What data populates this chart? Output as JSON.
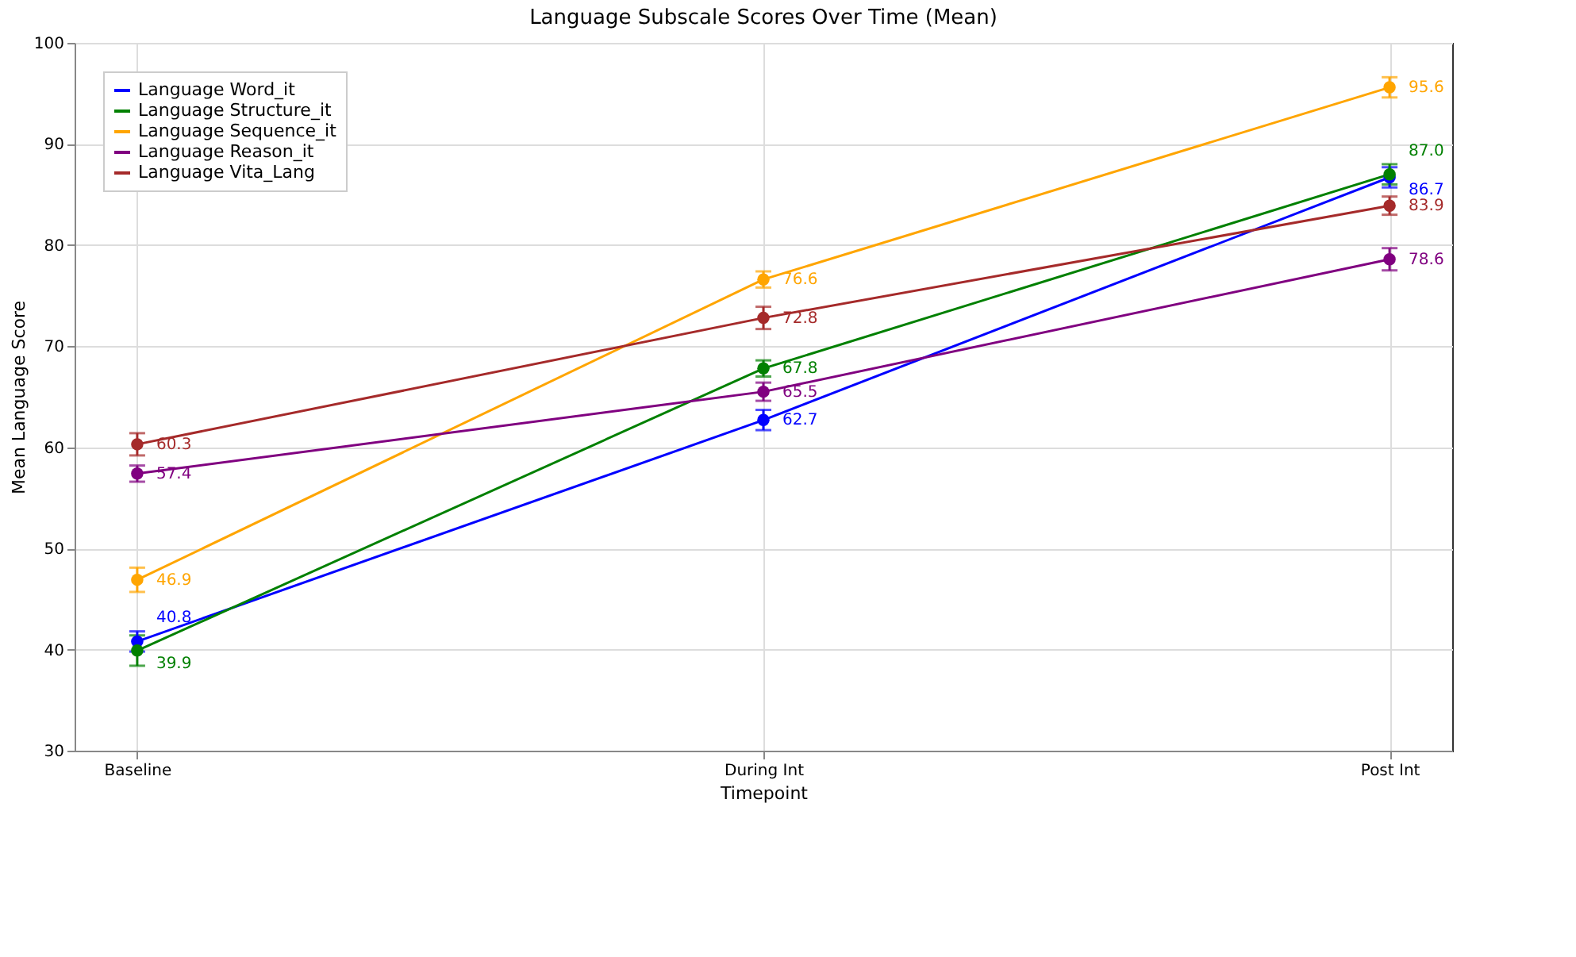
{
  "chart_data": {
    "type": "line",
    "title": "Language Subscale Scores Over Time (Mean)",
    "xlabel": "Timepoint",
    "ylabel": "Mean Language Score",
    "categories": [
      "Baseline",
      "During Int",
      "Post Int"
    ],
    "series": [
      {
        "name": "Language Word_it",
        "color": "#0000ff",
        "values": [
          40.8,
          62.7,
          86.7
        ],
        "errors": [
          1.0,
          1.0,
          1.0
        ],
        "value_labels": [
          "40.8",
          "62.7",
          "86.7"
        ]
      },
      {
        "name": "Language Structure_it",
        "color": "#008000",
        "values": [
          39.9,
          67.8,
          87.0
        ],
        "errors": [
          1.5,
          0.8,
          1.0
        ],
        "value_labels": [
          "39.9",
          "67.8",
          "87.0"
        ]
      },
      {
        "name": "Language Sequence_it",
        "color": "#ffa500",
        "values": [
          46.9,
          76.6,
          95.6
        ],
        "errors": [
          1.2,
          0.8,
          1.0
        ],
        "value_labels": [
          "46.9",
          "76.6",
          "95.6"
        ]
      },
      {
        "name": "Language Reason_it",
        "color": "#800080",
        "values": [
          57.4,
          65.5,
          78.6
        ],
        "errors": [
          0.8,
          0.9,
          1.1
        ],
        "value_labels": [
          "57.4",
          "65.5",
          "78.6"
        ]
      },
      {
        "name": "Language Vita_Lang",
        "color": "#a52a2a",
        "values": [
          60.3,
          72.8,
          83.9
        ],
        "errors": [
          1.1,
          1.1,
          0.9
        ],
        "value_labels": [
          "60.3",
          "72.8",
          "83.9"
        ]
      }
    ],
    "ylim": [
      30,
      100
    ],
    "yticks": [
      30,
      40,
      50,
      60,
      70,
      80,
      90,
      100
    ],
    "grid": true,
    "legend": "top left",
    "marker": "circle",
    "line_style": "solid"
  }
}
